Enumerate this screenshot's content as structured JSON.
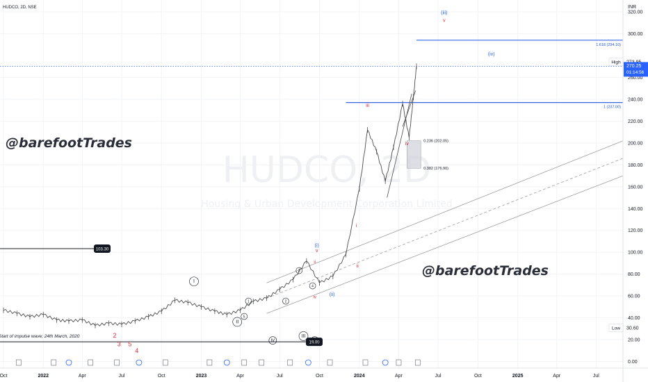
{
  "header": {
    "symbol_line": "HUDCO, 2D, NSE",
    "currency": "INR"
  },
  "watermark": {
    "symbol": "HUDCO, 2D",
    "subtitle": "Housing & Urban Development Corporation Limited"
  },
  "brand_text": "@barefootTrades",
  "colors": {
    "price_line": "#2962ff",
    "fib_line": "#1e53e5",
    "wave_red": "#e0282e",
    "wave_blue": "#2962ff",
    "candles": "#4a4a4a",
    "channel": "#9e9e9e",
    "watermark": "#eef0f3",
    "grid": "#f2f3f5",
    "axis_text": "#131722"
  },
  "chart_data": {
    "type": "line",
    "symbol": "HUDCO",
    "timeframe": "2D",
    "exchange": "NSE",
    "y_axis": {
      "unit": "INR",
      "ylim": [
        0,
        325
      ],
      "ticks": [
        "0.00",
        "20.00",
        "40.00",
        "60.00",
        "80.00",
        "100.00",
        "120.00",
        "140.00",
        "160.00",
        "180.00",
        "200.00",
        "220.00",
        "240.00",
        "260.00",
        "300.00",
        "320.00"
      ]
    },
    "x_axis": {
      "range": [
        "2021-10-01",
        "2025-09-01"
      ],
      "ticks": [
        {
          "date": "2021-10-01",
          "label": "Oct",
          "bold": false
        },
        {
          "date": "2022-01-01",
          "label": "2022",
          "bold": true
        },
        {
          "date": "2022-04-01",
          "label": "Apr",
          "bold": false
        },
        {
          "date": "2022-07-01",
          "label": "Jul",
          "bold": false
        },
        {
          "date": "2022-10-01",
          "label": "Oct",
          "bold": false
        },
        {
          "date": "2023-01-01",
          "label": "2023",
          "bold": true
        },
        {
          "date": "2023-04-01",
          "label": "Apr",
          "bold": false
        },
        {
          "date": "2023-07-01",
          "label": "Jul",
          "bold": false
        },
        {
          "date": "2023-10-01",
          "label": "Oct",
          "bold": false
        },
        {
          "date": "2024-01-01",
          "label": "2024",
          "bold": true
        },
        {
          "date": "2024-04-01",
          "label": "Apr",
          "bold": false
        },
        {
          "date": "2024-07-01",
          "label": "Jul",
          "bold": false
        },
        {
          "date": "2024-10-01",
          "label": "Oct",
          "bold": false
        },
        {
          "date": "2025-01-01",
          "label": "2025",
          "bold": true
        },
        {
          "date": "2025-04-01",
          "label": "Apr",
          "bold": false
        },
        {
          "date": "2025-07-01",
          "label": "Jul",
          "bold": false
        }
      ]
    },
    "price_series": [
      {
        "date": "2021-10-01",
        "close": 47
      },
      {
        "date": "2021-11-01",
        "close": 44
      },
      {
        "date": "2021-12-01",
        "close": 41
      },
      {
        "date": "2022-01-01",
        "close": 43
      },
      {
        "date": "2022-02-01",
        "close": 38
      },
      {
        "date": "2022-03-01",
        "close": 37
      },
      {
        "date": "2022-04-01",
        "close": 38
      },
      {
        "date": "2022-05-01",
        "close": 33
      },
      {
        "date": "2022-06-01",
        "close": 35
      },
      {
        "date": "2022-07-01",
        "close": 34
      },
      {
        "date": "2022-08-01",
        "close": 37
      },
      {
        "date": "2022-09-01",
        "close": 41
      },
      {
        "date": "2022-10-01",
        "close": 46
      },
      {
        "date": "2022-11-01",
        "close": 56
      },
      {
        "date": "2022-12-01",
        "close": 54
      },
      {
        "date": "2023-01-01",
        "close": 50
      },
      {
        "date": "2023-02-01",
        "close": 46
      },
      {
        "date": "2023-03-01",
        "close": 43
      },
      {
        "date": "2023-04-01",
        "close": 47
      },
      {
        "date": "2023-05-01",
        "close": 55
      },
      {
        "date": "2023-06-01",
        "close": 58
      },
      {
        "date": "2023-07-01",
        "close": 66
      },
      {
        "date": "2023-08-01",
        "close": 75
      },
      {
        "date": "2023-09-01",
        "close": 92
      },
      {
        "date": "2023-10-01",
        "close": 72
      },
      {
        "date": "2023-11-01",
        "close": 78
      },
      {
        "date": "2023-12-01",
        "close": 98
      },
      {
        "date": "2024-01-01",
        "close": 158
      },
      {
        "date": "2024-01-20",
        "close": 212
      },
      {
        "date": "2024-02-10",
        "close": 192
      },
      {
        "date": "2024-03-01",
        "close": 165
      },
      {
        "date": "2024-03-20",
        "close": 196
      },
      {
        "date": "2024-04-10",
        "close": 236
      },
      {
        "date": "2024-04-25",
        "close": 205
      },
      {
        "date": "2024-05-05",
        "close": 242
      },
      {
        "date": "2024-05-12",
        "close": 270.25
      }
    ],
    "price_labels": [
      {
        "label": "High",
        "value": "273.95"
      },
      {
        "label": "Low",
        "value": "30.60"
      }
    ],
    "current_price": {
      "value": "270.25",
      "countdown": "01:14:56"
    },
    "fib_levels": [
      {
        "label": "1.618 (294.10)",
        "value": 294.1,
        "x_start": "2024-05-12",
        "x_end": "2025-09-01"
      },
      {
        "label": "1 (237.00)",
        "value": 237.0,
        "x_start": "2023-12-01",
        "x_end": "2025-09-01"
      }
    ],
    "retracement_zone": {
      "top_label": "0.236 (202.05)",
      "top": 202.05,
      "bottom_label": "0.382 (176.90)",
      "bottom": 176.9
    },
    "horizontal_levels": [
      {
        "label": "103.30",
        "value": 103.3
      },
      {
        "label": "18.00",
        "value": 18.0
      }
    ],
    "annotations": {
      "impulse_start": "Start of impulse wave; 24th March, 2020",
      "wave_labels_red": [
        "2",
        "3",
        "5",
        "4",
        "iii",
        "iv",
        "v",
        "i",
        "ii",
        "ii",
        "iv",
        "v"
      ],
      "wave_labels_blue": [
        "(i)",
        "(ii)",
        "(iii)",
        "(iv)",
        "v"
      ],
      "wave_labels_circled": [
        "I",
        "II",
        "III",
        "IV",
        "V",
        "1",
        "2",
        "3",
        "4",
        "5"
      ]
    }
  }
}
